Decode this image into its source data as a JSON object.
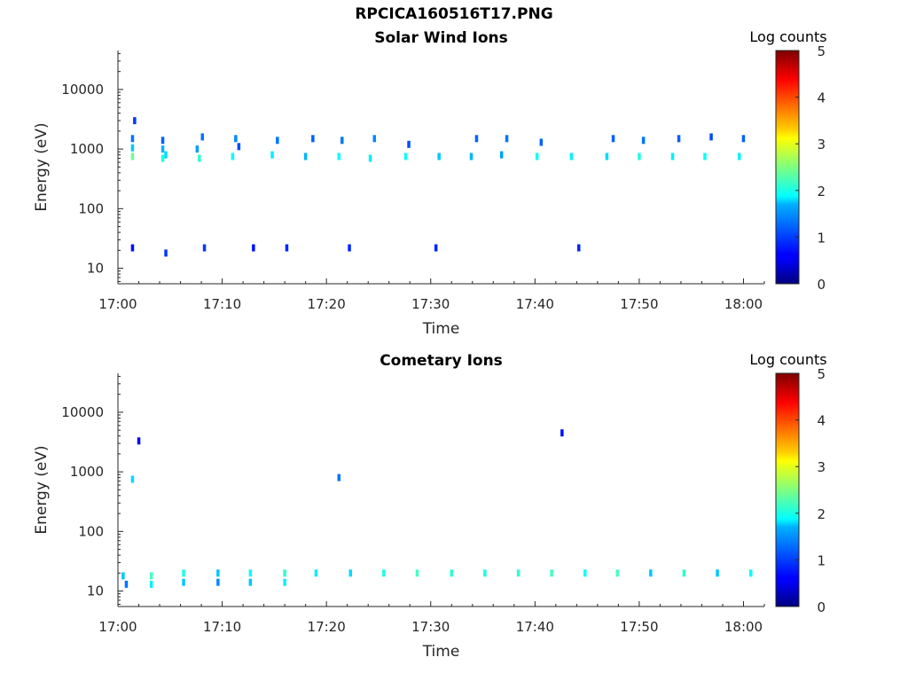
{
  "figure": {
    "title": "RPCICA160516T17.PNG"
  },
  "chart_data": [
    {
      "type": "heatmap",
      "title": "Solar Wind Ions",
      "xlabel": "Time",
      "ylabel": "Energy (eV)",
      "x_tick_labels": [
        "17:00",
        "17:10",
        "17:20",
        "17:30",
        "17:40",
        "17:50",
        "18:00"
      ],
      "x_tick_minutes": [
        0,
        10,
        20,
        30,
        40,
        50,
        60
      ],
      "xlim_minutes": [
        0,
        62
      ],
      "y_tick_labels": [
        "10",
        "100",
        "1000",
        "10000"
      ],
      "y_tick_values": [
        10,
        100,
        1000,
        10000
      ],
      "ylim": [
        5.5,
        45000
      ],
      "yscale": "log",
      "colorbar": {
        "title": "Log counts",
        "ticks": [
          "0",
          "1",
          "2",
          "3",
          "4",
          "5"
        ],
        "range": [
          0,
          5
        ],
        "colormap": "jet"
      },
      "cells": [
        [
          1.4,
          750,
          2.4
        ],
        [
          1.4,
          1050,
          1.6
        ],
        [
          1.4,
          1500,
          1.2
        ],
        [
          1.6,
          3000,
          0.9
        ],
        [
          1.4,
          22,
          0.7
        ],
        [
          4.3,
          700,
          2.0
        ],
        [
          4.3,
          1000,
          1.5
        ],
        [
          4.3,
          1400,
          1.1
        ],
        [
          4.6,
          800,
          1.7
        ],
        [
          4.6,
          18,
          0.9
        ],
        [
          7.8,
          700,
          2.1
        ],
        [
          7.6,
          1000,
          1.4
        ],
        [
          8.1,
          1600,
          1.2
        ],
        [
          8.3,
          22,
          0.9
        ],
        [
          11.0,
          750,
          1.9
        ],
        [
          11.3,
          1500,
          1.3
        ],
        [
          11.6,
          1100,
          1.0
        ],
        [
          13.0,
          22,
          0.7
        ],
        [
          14.8,
          800,
          1.8
        ],
        [
          15.3,
          1400,
          1.2
        ],
        [
          16.2,
          22,
          0.8
        ],
        [
          18.0,
          750,
          1.5
        ],
        [
          18.7,
          1500,
          1.1
        ],
        [
          21.2,
          750,
          1.9
        ],
        [
          21.5,
          1400,
          1.2
        ],
        [
          22.2,
          22,
          0.8
        ],
        [
          24.2,
          700,
          1.8
        ],
        [
          24.6,
          1500,
          1.3
        ],
        [
          27.6,
          750,
          1.9
        ],
        [
          27.9,
          1200,
          1.0
        ],
        [
          30.5,
          22,
          0.8
        ],
        [
          30.8,
          750,
          1.6
        ],
        [
          33.9,
          750,
          1.5
        ],
        [
          34.4,
          1500,
          1.1
        ],
        [
          36.8,
          800,
          1.4
        ],
        [
          37.3,
          1500,
          1.2
        ],
        [
          40.2,
          750,
          1.9
        ],
        [
          40.6,
          1300,
          1.1
        ],
        [
          43.5,
          750,
          1.8
        ],
        [
          44.2,
          22,
          0.8
        ],
        [
          46.9,
          750,
          1.7
        ],
        [
          47.5,
          1500,
          1.1
        ],
        [
          50.0,
          750,
          2.0
        ],
        [
          50.4,
          1400,
          1.2
        ],
        [
          53.2,
          750,
          1.8
        ],
        [
          53.8,
          1500,
          1.1
        ],
        [
          56.3,
          750,
          1.9
        ],
        [
          56.9,
          1600,
          1.0
        ],
        [
          59.6,
          750,
          1.8
        ],
        [
          60.0,
          1500,
          1.1
        ]
      ]
    },
    {
      "type": "heatmap",
      "title": "Cometary Ions",
      "xlabel": "Time",
      "ylabel": "Energy (eV)",
      "x_tick_labels": [
        "17:00",
        "17:10",
        "17:20",
        "17:30",
        "17:40",
        "17:50",
        "18:00"
      ],
      "x_tick_minutes": [
        0,
        10,
        20,
        30,
        40,
        50,
        60
      ],
      "xlim_minutes": [
        0,
        62
      ],
      "y_tick_labels": [
        "10",
        "100",
        "1000",
        "10000"
      ],
      "y_tick_values": [
        10,
        100,
        1000,
        10000
      ],
      "ylim": [
        5.5,
        45000
      ],
      "yscale": "log",
      "colorbar": {
        "title": "Log counts",
        "ticks": [
          "0",
          "1",
          "2",
          "3",
          "4",
          "5"
        ],
        "range": [
          0,
          5
        ],
        "colormap": "jet"
      },
      "cells": [
        [
          0.5,
          18,
          1.6
        ],
        [
          0.8,
          13,
          1.2
        ],
        [
          3.2,
          18,
          2.2
        ],
        [
          3.2,
          13,
          1.8
        ],
        [
          6.3,
          20,
          2.0
        ],
        [
          6.3,
          14,
          1.6
        ],
        [
          9.6,
          20,
          1.6
        ],
        [
          9.6,
          14,
          1.3
        ],
        [
          12.7,
          20,
          1.9
        ],
        [
          12.7,
          14,
          1.6
        ],
        [
          16.0,
          20,
          2.1
        ],
        [
          16.0,
          14,
          1.8
        ],
        [
          19.0,
          20,
          1.8
        ],
        [
          22.3,
          20,
          1.7
        ],
        [
          25.5,
          20,
          2.0
        ],
        [
          28.7,
          20,
          2.2
        ],
        [
          32.0,
          20,
          2.1
        ],
        [
          35.2,
          20,
          2.0
        ],
        [
          38.4,
          20,
          2.1
        ],
        [
          41.6,
          20,
          2.2
        ],
        [
          44.8,
          20,
          1.9
        ],
        [
          47.9,
          20,
          2.2
        ],
        [
          51.1,
          20,
          1.6
        ],
        [
          54.3,
          20,
          2.1
        ],
        [
          57.5,
          20,
          1.6
        ],
        [
          60.7,
          20,
          1.9
        ],
        [
          1.4,
          750,
          1.7
        ],
        [
          21.2,
          800,
          1.2
        ],
        [
          42.6,
          4500,
          0.7
        ],
        [
          2.0,
          3300,
          0.6
        ]
      ]
    }
  ]
}
